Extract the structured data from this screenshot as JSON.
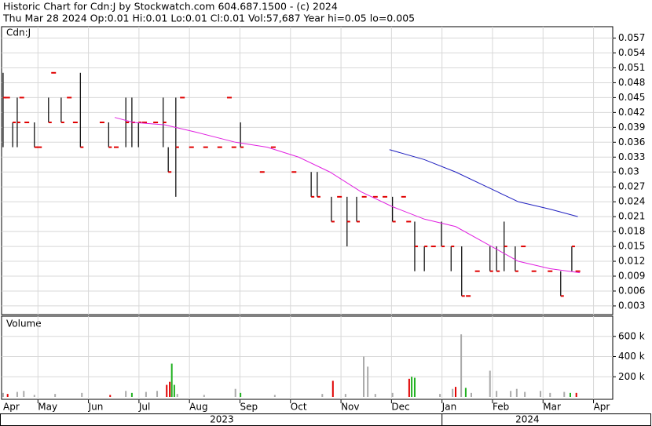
{
  "chart_data": {
    "type": "ohlc",
    "title": "Historic Chart for Cdn:J by Stockwatch.com 604.687.1500 - (c) 2024",
    "subtitle": "Thu Mar 28 2024  Op:0.01  Hi:0.01  Lo:0.01  Cl:0.01  Vol:57,687  Year hi=0.05  lo=0.005",
    "panel_label": "Cdn:J",
    "grid": true,
    "xlim": [
      0.28,
      12.38
    ],
    "xticks": [
      {
        "value": 0,
        "label": "Apr"
      },
      {
        "value": 1,
        "label": "May"
      },
      {
        "value": 2,
        "label": "Jun"
      },
      {
        "value": 3,
        "label": "Jul"
      },
      {
        "value": 4,
        "label": "Aug"
      },
      {
        "value": 5,
        "label": "Sep"
      },
      {
        "value": 6,
        "label": "Oct"
      },
      {
        "value": 7,
        "label": "Nov"
      },
      {
        "value": 8,
        "label": "Dec"
      },
      {
        "value": 9,
        "label": "Jan"
      },
      {
        "value": 10,
        "label": "Feb"
      },
      {
        "value": 11,
        "label": "Mar"
      },
      {
        "value": 12,
        "label": "Apr"
      }
    ],
    "years": [
      {
        "value": 0.28,
        "label": "2023"
      },
      {
        "value": 9,
        "label": "2024"
      }
    ],
    "ylim": [
      0.00125,
      0.0593
    ],
    "yticks": [
      0.057,
      0.054,
      0.051,
      0.048,
      0.045,
      0.042,
      0.039,
      0.036,
      0.033,
      0.03,
      0.027,
      0.024,
      0.021,
      0.018,
      0.015,
      0.012,
      0.009,
      0.006,
      0.003
    ],
    "bar_color": "#000000",
    "flat_color": "#e00000",
    "x": [
      0.31,
      0.4,
      0.5,
      0.59,
      0.68,
      0.78,
      0.93,
      1.03,
      1.21,
      1.31,
      1.46,
      1.62,
      1.74,
      1.84,
      2.27,
      2.4,
      2.55,
      2.74,
      2.86,
      2.99,
      3.11,
      3.33,
      3.48,
      3.58,
      3.73,
      3.86,
      4.04,
      4.32,
      4.6,
      4.79,
      4.88,
      5.01,
      5.44,
      5.66,
      6.07,
      6.41,
      6.53,
      6.81,
      6.97,
      7.12,
      7.31,
      7.46,
      7.68,
      7.87,
      8.02,
      8.24,
      8.34,
      8.46,
      8.65,
      8.83,
      8.99,
      9.18,
      9.39,
      9.52,
      9.7,
      9.95,
      10.08,
      10.23,
      10.45,
      10.61,
      10.82,
      11.14,
      11.35,
      11.57,
      11.69
    ],
    "high": [
      0.05,
      0.045,
      0.04,
      0.045,
      0.045,
      0.04,
      0.04,
      0.035,
      0.045,
      0.05,
      0.045,
      0.045,
      0.04,
      0.05,
      0.04,
      0.04,
      0.035,
      0.045,
      0.045,
      0.04,
      0.04,
      0.04,
      0.045,
      0.035,
      0.045,
      0.045,
      0.035,
      0.035,
      0.035,
      0.045,
      0.035,
      0.04,
      0.03,
      0.035,
      0.03,
      0.03,
      0.03,
      0.025,
      0.025,
      0.025,
      0.025,
      0.025,
      0.025,
      0.025,
      0.025,
      0.025,
      0.02,
      0.02,
      0.015,
      0.015,
      0.02,
      0.015,
      0.015,
      0.005,
      0.01,
      0.015,
      0.015,
      0.02,
      0.015,
      0.015,
      0.01,
      0.01,
      0.01,
      0.015,
      0.01
    ],
    "low": [
      0.035,
      0.045,
      0.035,
      0.035,
      0.045,
      0.04,
      0.035,
      0.035,
      0.04,
      0.05,
      0.04,
      0.045,
      0.04,
      0.035,
      0.04,
      0.035,
      0.035,
      0.035,
      0.035,
      0.035,
      0.04,
      0.04,
      0.035,
      0.03,
      0.025,
      0.045,
      0.035,
      0.035,
      0.035,
      0.045,
      0.035,
      0.035,
      0.03,
      0.035,
      0.03,
      0.025,
      0.025,
      0.02,
      0.025,
      0.015,
      0.02,
      0.025,
      0.025,
      0.025,
      0.02,
      0.025,
      0.02,
      0.01,
      0.01,
      0.015,
      0.015,
      0.01,
      0.005,
      0.005,
      0.01,
      0.01,
      0.01,
      0.01,
      0.01,
      0.015,
      0.01,
      0.01,
      0.005,
      0.01,
      0.01
    ],
    "close": [
      0.045,
      0.045,
      0.04,
      0.04,
      0.045,
      0.04,
      0.035,
      0.035,
      0.04,
      0.05,
      0.04,
      0.045,
      0.04,
      0.035,
      0.04,
      0.035,
      0.035,
      0.04,
      0.04,
      0.04,
      0.04,
      0.04,
      0.04,
      0.03,
      0.035,
      0.045,
      0.035,
      0.035,
      0.035,
      0.045,
      0.035,
      0.035,
      0.03,
      0.035,
      0.03,
      0.025,
      0.025,
      0.02,
      0.025,
      0.02,
      0.02,
      0.025,
      0.025,
      0.025,
      0.02,
      0.025,
      0.02,
      0.015,
      0.015,
      0.015,
      0.015,
      0.015,
      0.005,
      0.005,
      0.01,
      0.01,
      0.01,
      0.015,
      0.01,
      0.015,
      0.01,
      0.01,
      0.005,
      0.015,
      0.01
    ],
    "averages": [
      {
        "color": "#e020e0",
        "x": [
          2.52,
          2.89,
          3.51,
          4.14,
          4.91,
          5.54,
          6.16,
          6.78,
          7.4,
          8.02,
          8.65,
          9.27,
          9.89,
          10.51,
          11.14,
          11.73
        ],
        "values": [
          0.041,
          0.04,
          0.0395,
          0.038,
          0.036,
          0.035,
          0.033,
          0.03,
          0.026,
          0.023,
          0.0205,
          0.019,
          0.0155,
          0.012,
          0.0105,
          0.0097
        ]
      },
      {
        "color": "#2020c0",
        "x": [
          7.96,
          8.65,
          9.27,
          9.89,
          10.51,
          11.14,
          11.69
        ],
        "values": [
          0.0345,
          0.0325,
          0.03,
          0.027,
          0.024,
          0.0225,
          0.021
        ]
      }
    ],
    "volume": {
      "label": "Volume",
      "ylim": [
        0,
        800000
      ],
      "yticks": [
        {
          "value": 600000,
          "label": "600 k"
        },
        {
          "value": 400000,
          "label": "400 k"
        },
        {
          "value": 200000,
          "label": "200 k"
        }
      ],
      "x": [
        0.31,
        0.4,
        0.59,
        0.72,
        0.93,
        1.34,
        1.87,
        2.43,
        2.74,
        2.86,
        3.14,
        3.36,
        3.55,
        3.61,
        3.65,
        3.7,
        3.76,
        4.29,
        4.91,
        5.01,
        5.69,
        6.63,
        6.84,
        7.09,
        7.45,
        7.53,
        7.68,
        8.02,
        8.35,
        8.4,
        8.46,
        8.96,
        9.21,
        9.27,
        9.38,
        9.47,
        9.58,
        9.95,
        10.08,
        10.36,
        10.48,
        10.64,
        10.95,
        11.14,
        11.42,
        11.54,
        11.66
      ],
      "values": [
        40000,
        30000,
        50000,
        60000,
        20000,
        30000,
        40000,
        20000,
        60000,
        40000,
        50000,
        60000,
        120000,
        150000,
        330000,
        120000,
        30000,
        20000,
        80000,
        40000,
        20000,
        30000,
        160000,
        30000,
        400000,
        300000,
        30000,
        40000,
        180000,
        200000,
        190000,
        30000,
        80000,
        100000,
        620000,
        90000,
        40000,
        260000,
        60000,
        60000,
        80000,
        50000,
        60000,
        40000,
        50000,
        40000,
        40000
      ],
      "colors": [
        "#aaaaaa",
        "#e00000",
        "#aaaaaa",
        "#aaaaaa",
        "#aaaaaa",
        "#aaaaaa",
        "#aaaaaa",
        "#e00000",
        "#aaaaaa",
        "#20b020",
        "#aaaaaa",
        "#aaaaaa",
        "#e00000",
        "#e00000",
        "#20b020",
        "#20b020",
        "#aaaaaa",
        "#aaaaaa",
        "#aaaaaa",
        "#20b020",
        "#aaaaaa",
        "#aaaaaa",
        "#e00000",
        "#aaaaaa",
        "#aaaaaa",
        "#aaaaaa",
        "#aaaaaa",
        "#aaaaaa",
        "#e00000",
        "#20b020",
        "#20b020",
        "#aaaaaa",
        "#aaaaaa",
        "#e00000",
        "#aaaaaa",
        "#20b020",
        "#aaaaaa",
        "#aaaaaa",
        "#aaaaaa",
        "#aaaaaa",
        "#aaaaaa",
        "#aaaaaa",
        "#aaaaaa",
        "#aaaaaa",
        "#aaaaaa",
        "#20b020",
        "#e00000"
      ]
    }
  }
}
